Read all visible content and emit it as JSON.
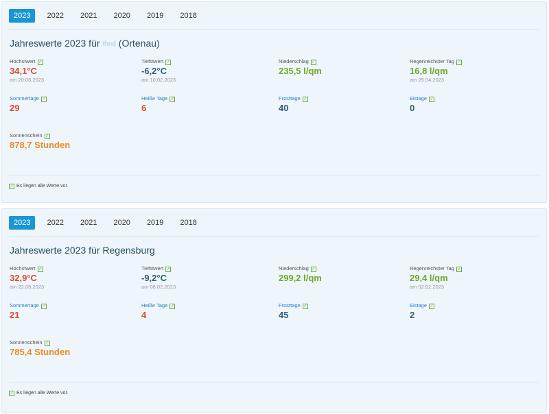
{
  "panels": [
    {
      "tabs": [
        "2023",
        "2022",
        "2021",
        "2020",
        "2019",
        "2018"
      ],
      "active_tab": "2023",
      "title_prefix": "Jahreswerte 2023 für",
      "title_obscured": "Ihnd",
      "title_suffix": "(Ortenau)",
      "stats": {
        "hoechst": {
          "label": "Höchstwert",
          "value": "34,1°C",
          "date": "am 20.06.2023"
        },
        "tief": {
          "label": "Tiefstwert",
          "value": "-6,2°C",
          "date": "am 10.02.2023"
        },
        "nieder": {
          "label": "Niederschlag",
          "value": "235,5 l/qm"
        },
        "regen": {
          "label": "Regenreichster Tag",
          "value": "16,8 l/qm",
          "date": "am 25.04.2023"
        },
        "sommer": {
          "label": "Sommertage",
          "value": "29"
        },
        "heiss": {
          "label": "Heiße Tage",
          "value": "6"
        },
        "frost": {
          "label": "Frosttage",
          "value": "40"
        },
        "eis": {
          "label": "Eistage",
          "value": "0"
        },
        "sonne": {
          "label": "Sonnenschein",
          "value": "878,7 Stunden"
        }
      },
      "footer": "Es liegen alle Werte vor."
    },
    {
      "tabs": [
        "2023",
        "2022",
        "2021",
        "2020",
        "2019",
        "2018"
      ],
      "active_tab": "2023",
      "title_prefix": "Jahreswerte 2023 für Regensburg",
      "title_obscured": "",
      "title_suffix": "",
      "stats": {
        "hoechst": {
          "label": "Höchstwert",
          "value": "32,9°C",
          "date": "am 22.08.2023"
        },
        "tief": {
          "label": "Tiefstwert",
          "value": "-9,2°C",
          "date": "am 08.02.2023"
        },
        "nieder": {
          "label": "Niederschlag",
          "value": "299,2 l/qm"
        },
        "regen": {
          "label": "Regenreichster Tag",
          "value": "29,4 l/qm",
          "date": "am 02.02.2023"
        },
        "sommer": {
          "label": "Sommertage",
          "value": "21"
        },
        "heiss": {
          "label": "Heiße Tage",
          "value": "4"
        },
        "frost": {
          "label": "Frosttage",
          "value": "45"
        },
        "eis": {
          "label": "Eistage",
          "value": "2"
        },
        "sonne": {
          "label": "Sonnenschein",
          "value": "785,4 Stunden"
        }
      },
      "footer": "Es liegen alle Werte vor."
    }
  ],
  "colors": {
    "accent": "#1a96d4",
    "hot": "#dd4b2a",
    "cold": "#2e5d78",
    "rain": "#73a62d",
    "sun": "#ec8a26"
  }
}
